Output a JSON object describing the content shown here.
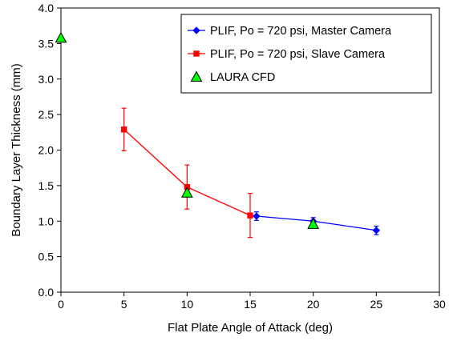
{
  "chart_data": {
    "type": "scatter",
    "title": "",
    "xlabel": "Flat Plate Angle of Attack (deg)",
    "ylabel": "Boundary Layer Thickness (mm)",
    "xlim": [
      0,
      30
    ],
    "ylim": [
      0.0,
      4.0
    ],
    "x_ticks": [
      0,
      5,
      10,
      15,
      20,
      25,
      30
    ],
    "x_tick_labels": [
      "0",
      "5",
      "10",
      "15",
      "20",
      "25",
      "30"
    ],
    "y_ticks": [
      0.0,
      0.5,
      1.0,
      1.5,
      2.0,
      2.5,
      3.0,
      3.5,
      4.0
    ],
    "y_tick_labels": [
      "0.0",
      "0.5",
      "1.0",
      "1.5",
      "2.0",
      "2.5",
      "3.0",
      "3.5",
      "4.0"
    ],
    "grid": false,
    "legend_position": "top-right",
    "series": [
      {
        "name": "PLIF, Po = 720 psi, Master Camera",
        "color": "#0000FF",
        "marker": "diamond",
        "line": true,
        "x": [
          15.5,
          20,
          25
        ],
        "y": [
          1.07,
          1.0,
          0.87
        ],
        "error": [
          0.06,
          0.05,
          0.06
        ]
      },
      {
        "name": "PLIF, Po = 720 psi, Slave Camera",
        "color": "#FF0000",
        "marker": "square",
        "line": true,
        "x": [
          5,
          10,
          15
        ],
        "y": [
          2.29,
          1.48,
          1.08
        ],
        "error": [
          0.3,
          0.31,
          0.31
        ]
      },
      {
        "name": "LAURA CFD",
        "color": "#00FF00",
        "marker": "triangle",
        "line": false,
        "x": [
          0,
          10,
          20
        ],
        "y": [
          3.58,
          1.4,
          0.96
        ],
        "error": null
      }
    ]
  }
}
